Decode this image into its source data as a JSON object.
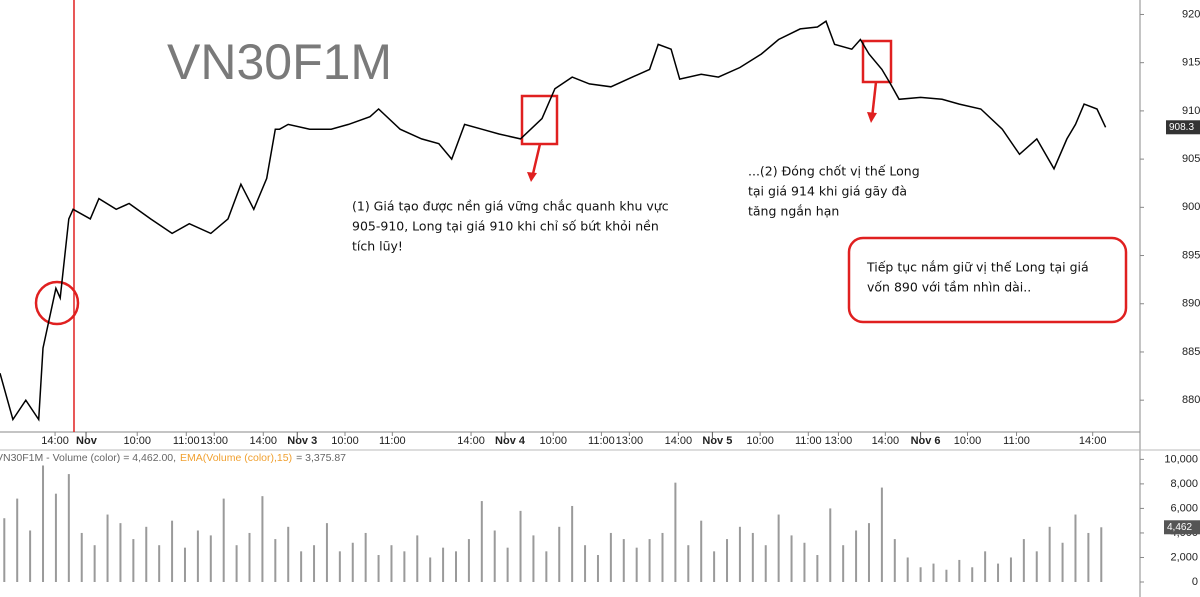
{
  "chart_data": [
    {
      "type": "line",
      "title": "VN30F1M",
      "x": [
        0,
        3,
        6,
        9,
        10,
        13,
        14,
        16,
        17,
        21,
        23,
        27,
        30,
        35,
        40,
        44,
        49,
        53,
        56,
        59,
        62,
        64,
        65,
        67,
        72,
        77,
        81,
        86,
        88,
        93,
        98,
        102,
        105,
        108,
        112,
        116,
        121,
        126,
        129,
        133,
        137,
        142,
        147,
        151,
        153,
        156,
        158,
        163,
        167,
        172,
        177,
        181,
        186,
        190,
        192,
        194,
        198,
        200,
        202,
        205,
        207,
        209,
        214,
        219,
        223,
        228,
        233,
        237,
        241,
        245,
        248,
        250,
        252,
        255,
        257
      ],
      "series": [
        {
          "name": "VN30F1M",
          "color": "#000000",
          "values": [
            882.8,
            878,
            880,
            878,
            885.4,
            891.6,
            890.6,
            898.8,
            899.8,
            898.8,
            900.9,
            899.8,
            900.4,
            898.8,
            897.3,
            898.3,
            897.3,
            898.8,
            902.4,
            899.8,
            903,
            908.1,
            908.1,
            908.6,
            908.1,
            908.1,
            908.6,
            909.4,
            910.2,
            908.1,
            907.1,
            906.6,
            905,
            908.6,
            908.1,
            907.6,
            907.1,
            909.2,
            912.3,
            913.5,
            912.8,
            912.5,
            913.5,
            914.3,
            916.9,
            916.4,
            913.3,
            913.8,
            913.5,
            914.5,
            915.9,
            917.4,
            918.5,
            918.7,
            919.3,
            916.9,
            916.4,
            917.4,
            915.9,
            914.3,
            912.8,
            911.2,
            911.4,
            911.2,
            910.7,
            910.2,
            908.1,
            905.5,
            907.1,
            904,
            907.1,
            908.6,
            910.7,
            910.2,
            908.3
          ]
        }
      ],
      "last_value": 908.3,
      "xlim": [
        0,
        265
      ],
      "ylim": [
        876.7,
        921.5
      ],
      "yticks": [
        880,
        885,
        890,
        895,
        900,
        905,
        910,
        915,
        920
      ],
      "xticks": [
        {
          "value": 12.8,
          "label": "14:00"
        },
        {
          "value": 31.9,
          "label": "10:00"
        },
        {
          "value": 43.3,
          "label": "11:00"
        },
        {
          "value": 49.8,
          "label": "13:00"
        },
        {
          "value": 61.2,
          "label": "14:00"
        },
        {
          "value": 80.2,
          "label": "10:00"
        },
        {
          "value": 91.2,
          "label": "11:00"
        },
        {
          "value": 109.5,
          "label": "14:00"
        },
        {
          "value": 128.6,
          "label": "10:00"
        },
        {
          "value": 139.8,
          "label": "11:00"
        },
        {
          "value": 146.3,
          "label": "13:00"
        },
        {
          "value": 157.7,
          "label": "14:00"
        },
        {
          "value": 176.7,
          "label": "10:00"
        },
        {
          "value": 187.9,
          "label": "11:00"
        },
        {
          "value": 194.9,
          "label": "13:00"
        },
        {
          "value": 205.8,
          "label": "14:00"
        },
        {
          "value": 224.9,
          "label": "10:00"
        },
        {
          "value": 236.3,
          "label": "11:00"
        },
        {
          "value": 254,
          "label": "14:00"
        }
      ],
      "day_ticks": [
        {
          "value": 20,
          "label": "Nov"
        },
        {
          "value": 69.1,
          "label": "Nov 3"
        },
        {
          "value": 117.4,
          "label": "Nov 4"
        },
        {
          "value": 165.6,
          "label": "Nov 5"
        },
        {
          "value": 214,
          "label": "Nov 6"
        }
      ],
      "marker_x": 17.2,
      "marker_color": "#e02020",
      "grid": false,
      "annotations": [
        [
          "(1) Giá tạo được nền giá vững chắc quanh khu vực",
          "905-910, Long tại giá 910 khi chỉ số bứt khỏi nền",
          "tích lũy!"
        ],
        [
          "...(2) Đóng chốt vị thế Long",
          "tại giá 914 khi giá gãy đà",
          "tăng ngắn hạn"
        ],
        [
          "Tiếp tục nắm giữ vị thế Long tại giá",
          "vốn 890 với tầm nhìn dài.."
        ]
      ]
    },
    {
      "type": "bar",
      "header": [
        "VN30F1M - Volume (color) = 4,462.00,",
        "EMA(Volume (color),15)",
        "= 3,375.87"
      ],
      "x": [
        1,
        4,
        7,
        10,
        13,
        16,
        19,
        22,
        25,
        28,
        31,
        34,
        37,
        40,
        43,
        46,
        49,
        52,
        55,
        58,
        61,
        64,
        67,
        70,
        73,
        76,
        79,
        82,
        85,
        88,
        91,
        94,
        97,
        100,
        103,
        106,
        109,
        112,
        115,
        118,
        121,
        124,
        127,
        130,
        133,
        136,
        139,
        142,
        145,
        148,
        151,
        154,
        157,
        160,
        163,
        166,
        169,
        172,
        175,
        178,
        181,
        184,
        187,
        190,
        193,
        196,
        199,
        202,
        205,
        208,
        211,
        214,
        217,
        220,
        223,
        226,
        229,
        232,
        235,
        238,
        241,
        244,
        247,
        250,
        253,
        256
      ],
      "values": [
        5200,
        6800,
        4200,
        9500,
        7200,
        8800,
        4000,
        3000,
        5500,
        4800,
        3500,
        4500,
        3000,
        5000,
        2800,
        4200,
        3800,
        6800,
        3000,
        4000,
        7000,
        3500,
        4500,
        2500,
        3000,
        4800,
        2500,
        3200,
        4000,
        2200,
        3000,
        2500,
        3800,
        2000,
        2800,
        2500,
        3500,
        6600,
        4200,
        2800,
        5800,
        3800,
        2500,
        4500,
        6200,
        3000,
        2200,
        4000,
        3500,
        2800,
        3500,
        4000,
        8100,
        3000,
        5000,
        2500,
        3500,
        4500,
        4000,
        3000,
        5500,
        3800,
        3200,
        2200,
        6000,
        3000,
        4200,
        4800,
        7700,
        3500,
        2000,
        1200,
        1500,
        1000,
        1800,
        1200,
        2500,
        1500,
        2000,
        3500,
        2500,
        4500,
        3200,
        5500,
        4000,
        4462
      ],
      "color": "#9a9a9a",
      "ema_color": "#f0a030",
      "last_label": {
        "value": 4462,
        "label": "4,462"
      },
      "xlim": [
        0,
        265
      ],
      "ylim": [
        0,
        10600
      ],
      "yticks": [
        0,
        {
          "value": 2000,
          "label": "2,000"
        },
        {
          "value": 4000,
          "label": "4,000"
        },
        {
          "value": 6000,
          "label": "6,000"
        },
        {
          "value": 8000,
          "label": "8,000"
        },
        {
          "value": 10000,
          "label": "10,000"
        }
      ]
    }
  ]
}
